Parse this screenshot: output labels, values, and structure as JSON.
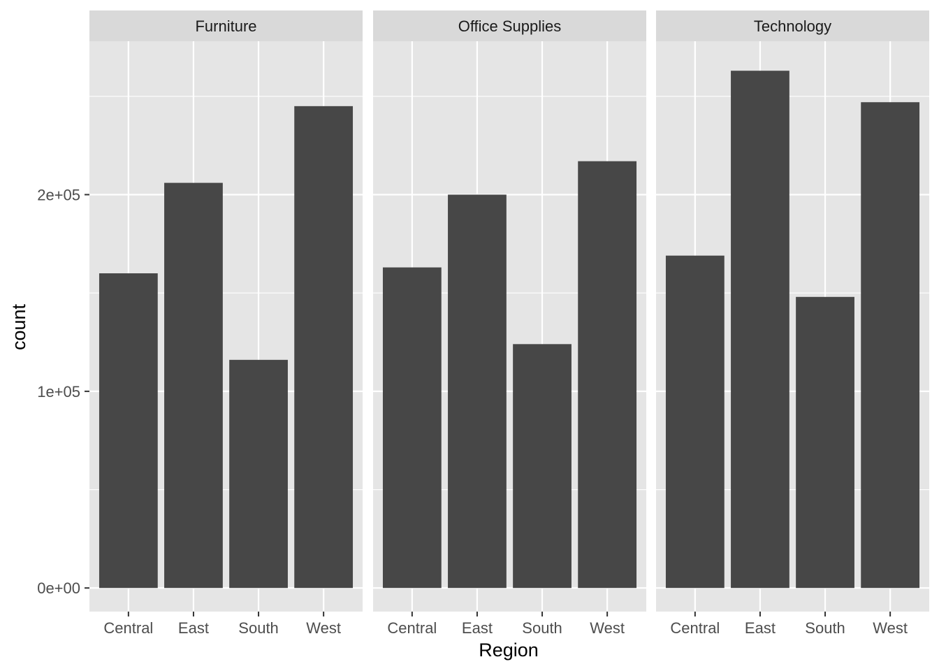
{
  "chart_data": {
    "type": "bar",
    "facet_by": "Category",
    "facets": [
      {
        "name": "Furniture",
        "categories": [
          "Central",
          "East",
          "South",
          "West"
        ],
        "values": [
          160000,
          206000,
          116000,
          245000
        ]
      },
      {
        "name": "Office Supplies",
        "categories": [
          "Central",
          "East",
          "South",
          "West"
        ],
        "values": [
          163000,
          200000,
          124000,
          217000
        ]
      },
      {
        "name": "Technology",
        "categories": [
          "Central",
          "East",
          "South",
          "West"
        ],
        "values": [
          169000,
          263000,
          148000,
          247000
        ]
      }
    ],
    "xlabel": "Region",
    "ylabel": "count",
    "ylim": [
      -12000,
      278000
    ],
    "yticks": [
      0,
      100000,
      200000
    ],
    "ytick_labels": [
      "0e+00",
      "1e+05",
      "2e+05"
    ],
    "grid": true,
    "colors": {
      "bar": "#474747",
      "panel": "#e5e5e5",
      "strip": "#d9d9d9",
      "grid": "#ffffff"
    }
  }
}
